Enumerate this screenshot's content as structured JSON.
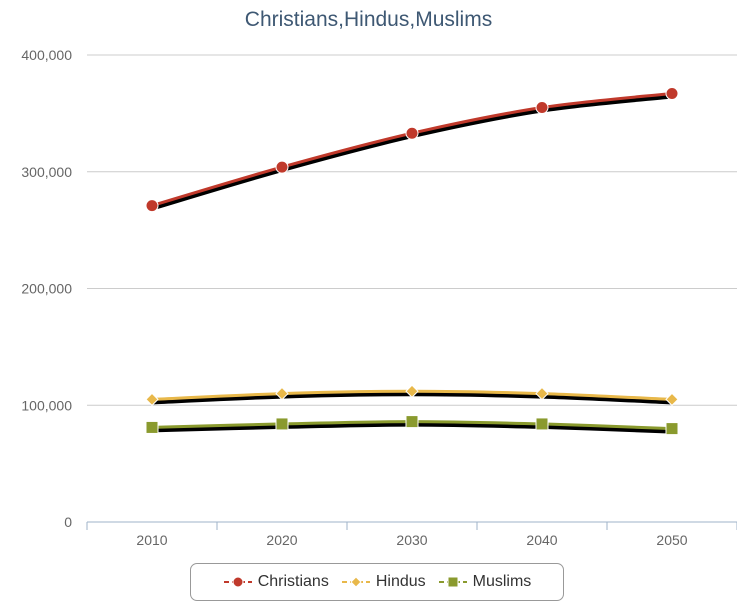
{
  "chart_data": {
    "type": "line",
    "title": "Christians,Hindus,Muslims",
    "categories": [
      "2010",
      "2020",
      "2030",
      "2040",
      "2050"
    ],
    "ylim": [
      0,
      400000
    ],
    "yticks": [
      "0",
      "100,000",
      "200,000",
      "300,000",
      "400,000"
    ],
    "grid": true,
    "legend_position": "bottom",
    "series": [
      {
        "name": "Christians",
        "values": [
          271000,
          304000,
          333000,
          355000,
          367000
        ],
        "color": "#c0392b",
        "marker": "circle"
      },
      {
        "name": "Hindus",
        "values": [
          105000,
          110000,
          112000,
          110000,
          105000
        ],
        "color": "#e8b84a",
        "marker": "diamond"
      },
      {
        "name": "Muslims",
        "values": [
          81000,
          84000,
          86000,
          84000,
          80000
        ],
        "color": "#8a9a2e",
        "marker": "square"
      }
    ]
  }
}
